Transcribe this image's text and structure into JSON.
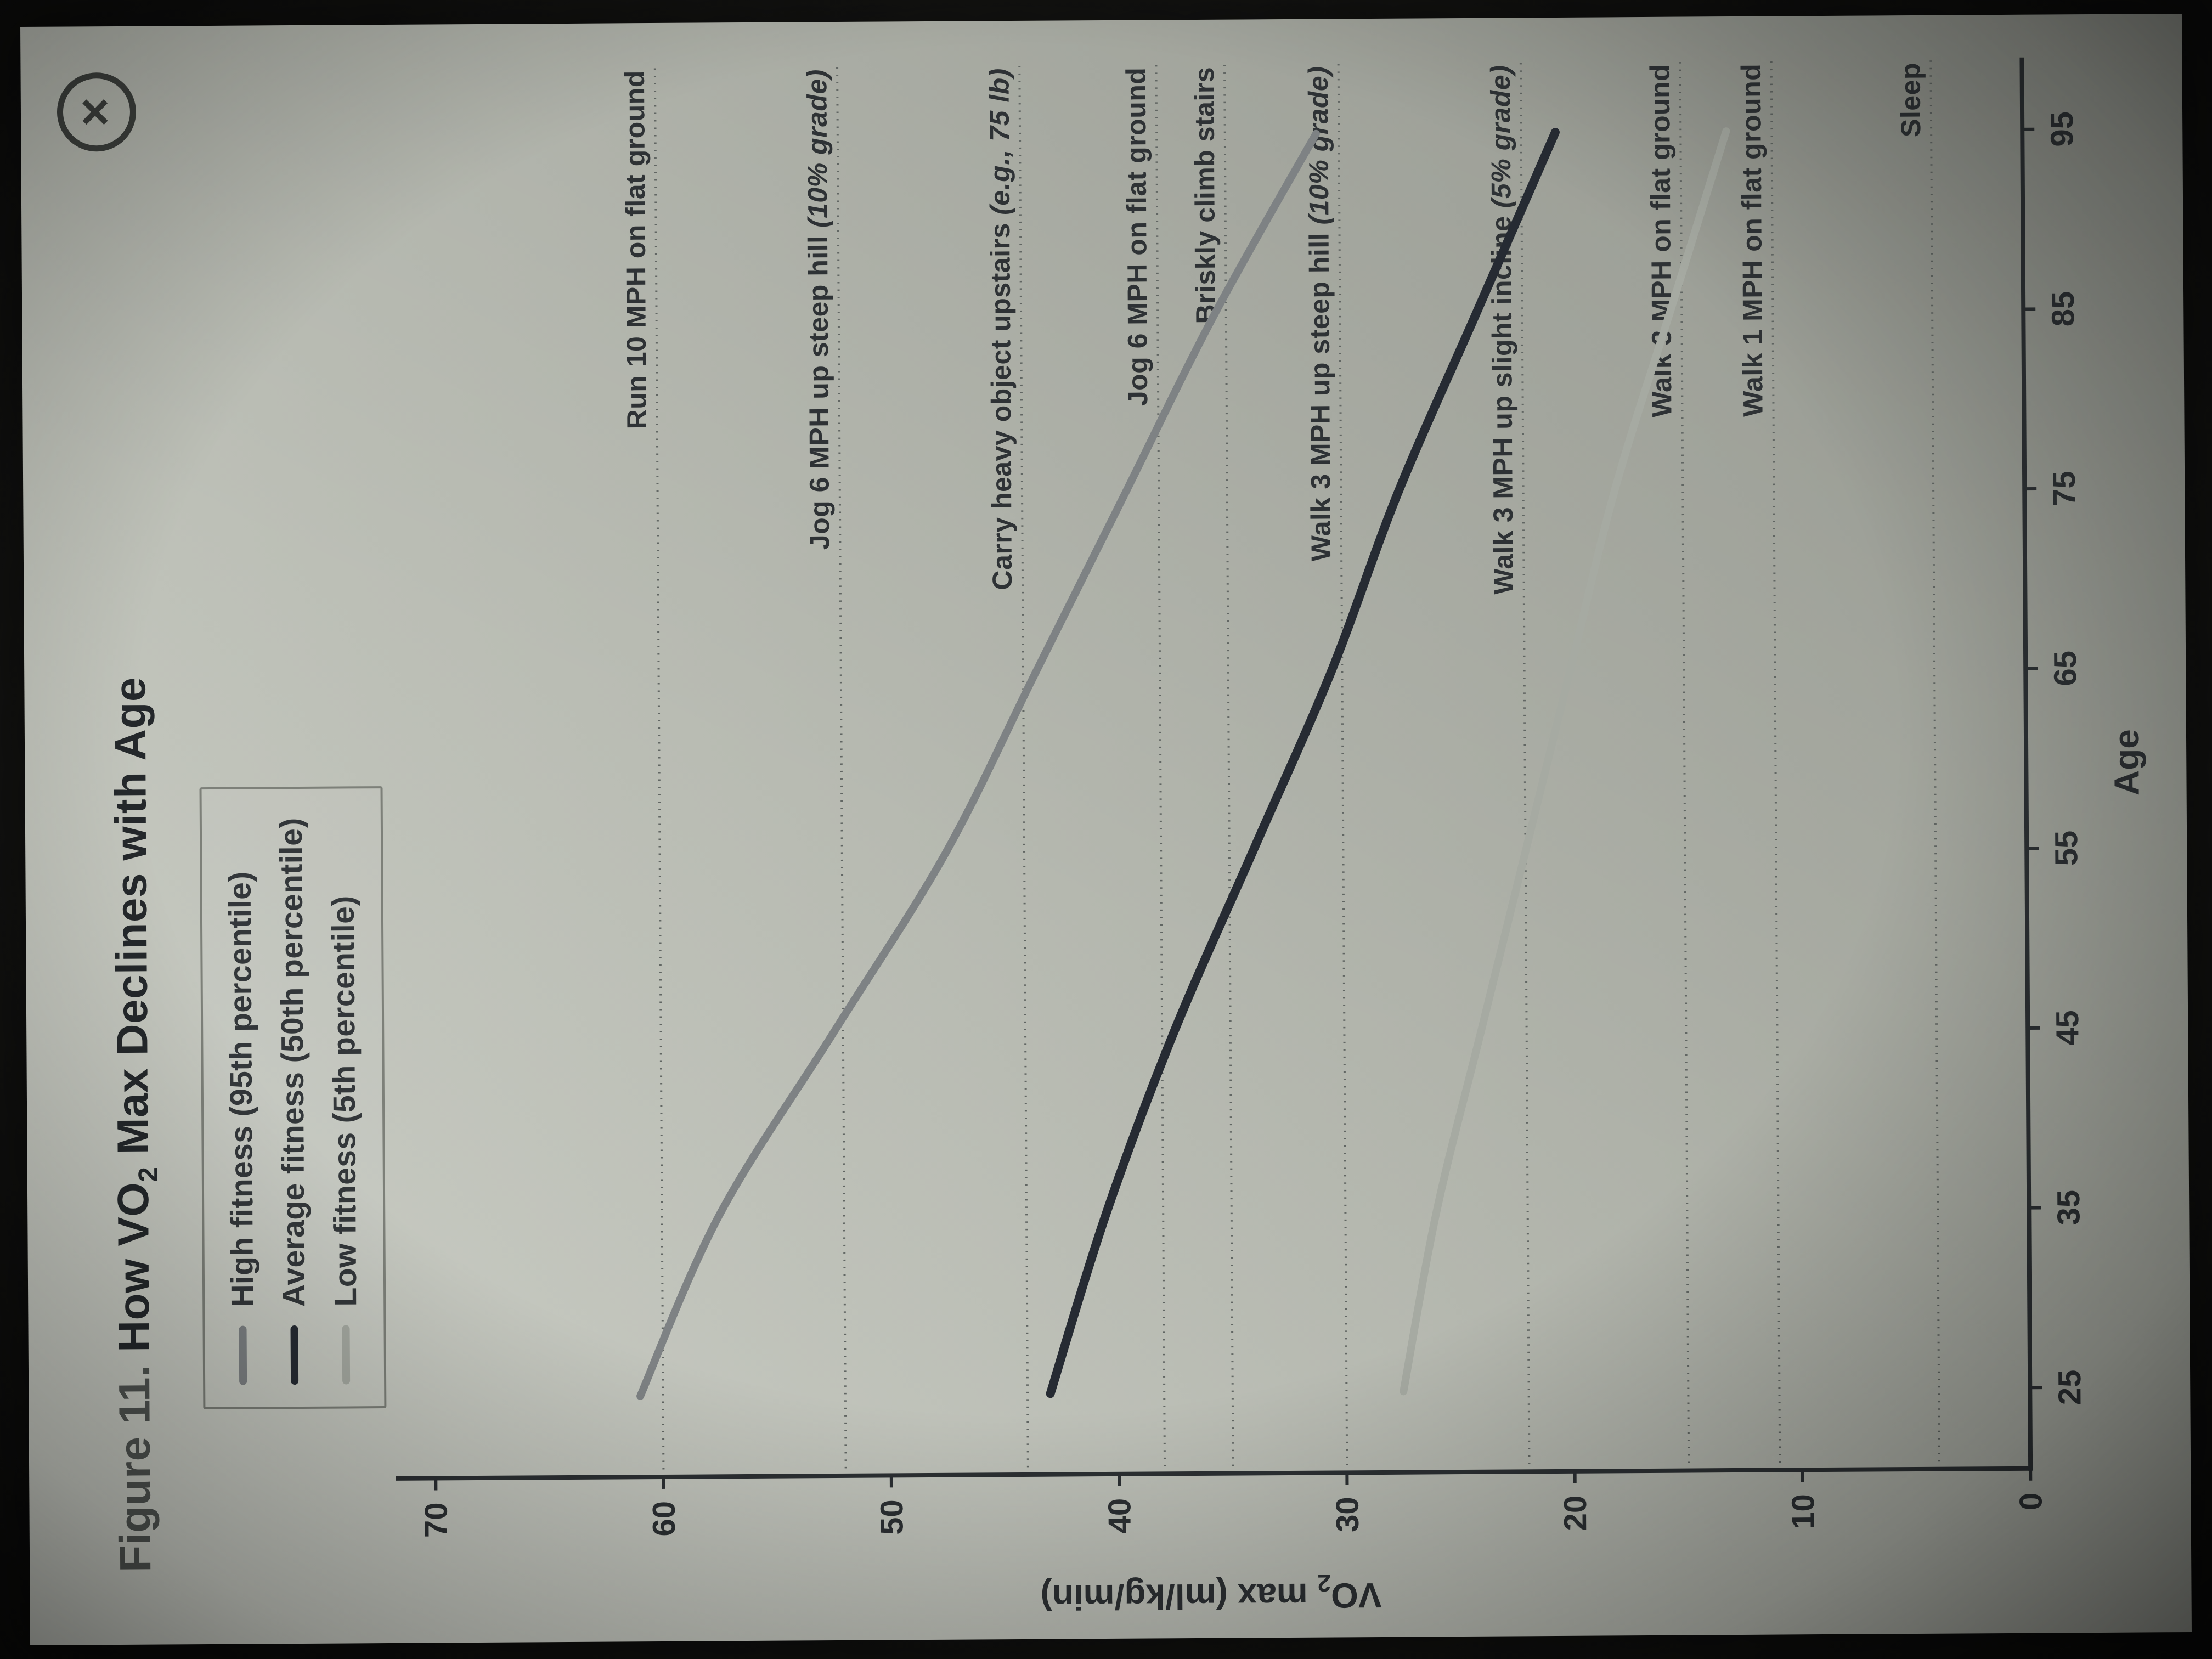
{
  "window": {
    "close_label": "×"
  },
  "header": {
    "figure_label": "Figure 11.",
    "title_pre": " How VO",
    "title_sub": "2",
    "title_post": " Max Declines with Age"
  },
  "legend": {
    "items": [
      {
        "label": "High fitness (95th percentile)",
        "color": "#7e8284"
      },
      {
        "label": "Average fitness (50th percentile)",
        "color": "#262b33"
      },
      {
        "label": "Low fitness (5th percentile)",
        "color": "#a6aaa2"
      }
    ]
  },
  "chart_data": {
    "type": "line",
    "title": "Figure 11. How VO2 Max Declines with Age",
    "xlabel": "Age",
    "ylabel_pre": "VO",
    "ylabel_sub": "2",
    "ylabel_post": " max (ml/kg/min)",
    "xlim": [
      20.5,
      99
    ],
    "ylim": [
      0,
      72
    ],
    "x_ticks": [
      25,
      35,
      45,
      55,
      65,
      75,
      85,
      95
    ],
    "y_ticks": [
      0,
      10,
      20,
      30,
      40,
      50,
      60,
      70
    ],
    "grid": false,
    "legend_position": "top-left",
    "x": [
      25,
      35,
      45,
      55,
      65,
      75,
      85,
      95
    ],
    "series": [
      {
        "name": "High fitness (95th percentile)",
        "color": "#7e8284",
        "width": 14,
        "values": [
          61,
          57.5,
          52.5,
          47.5,
          43.5,
          39.5,
          35.5,
          31
        ]
      },
      {
        "name": "Average fitness (50th percentile)",
        "color": "#262b33",
        "width": 16,
        "values": [
          43,
          40.5,
          37.5,
          34,
          30.5,
          27.5,
          24,
          20.5
        ]
      },
      {
        "name": "Low fitness (5th percentile)",
        "color": "#a6aaa2",
        "width": 14,
        "values": [
          27.5,
          26,
          24,
          22,
          20,
          18,
          15.5,
          13
        ]
      }
    ],
    "reference_lines": [
      {
        "value": 60,
        "text": "Run 10 MPH on flat ground",
        "note": ""
      },
      {
        "value": 52,
        "text": "Jog 6 MPH up steep hill ",
        "note": "(10% grade)"
      },
      {
        "value": 44,
        "text": "Carry heavy object upstairs ",
        "note": "(e.g., 75 lb)"
      },
      {
        "value": 38,
        "text": "Jog 6 MPH on flat ground",
        "note": ""
      },
      {
        "value": 35,
        "text": "Briskly climb stairs",
        "note": ""
      },
      {
        "value": 30,
        "text": "Walk 3 MPH up steep hill ",
        "note": "(10% grade)"
      },
      {
        "value": 22,
        "text": "Walk 3 MPH up slight incline ",
        "note": "(5% grade)"
      },
      {
        "value": 15,
        "text": "Walk 3 MPH on flat ground",
        "note": ""
      },
      {
        "value": 11,
        "text": "Walk 1 MPH on flat ground",
        "note": ""
      },
      {
        "value": 4,
        "text": "Sleep",
        "note": ""
      }
    ],
    "style": {
      "axis_color": "#2c3033",
      "tick_text_color": "#2c3033",
      "ref_line_color": "#616663",
      "ref_text_color": "#2e3235"
    }
  }
}
